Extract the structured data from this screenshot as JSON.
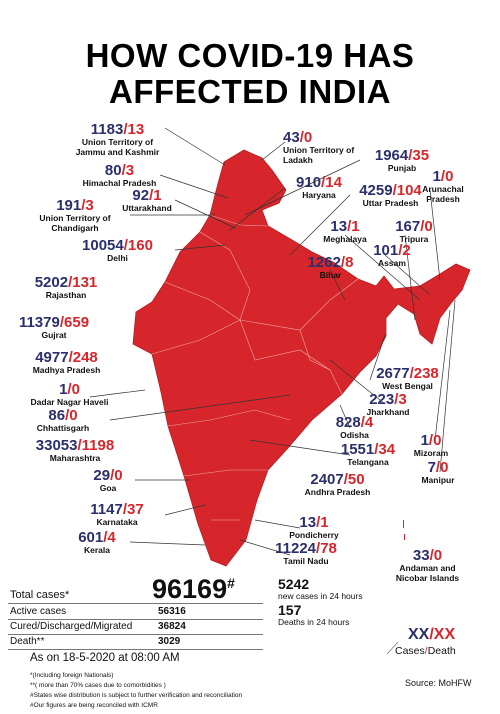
{
  "title": "HOW COVID-19 HAS\nAFFECTED INDIA",
  "separator": "/",
  "regions": [
    {
      "name": "Union Territory of\nJammu and Kashmir",
      "cases": 1183,
      "deaths": 13
    },
    {
      "name": "Union Territory of\nLadakh",
      "cases": 43,
      "deaths": 0
    },
    {
      "name": "Himachal Pradesh",
      "cases": 80,
      "deaths": 3
    },
    {
      "name": "Punjab",
      "cases": 1964,
      "deaths": 35
    },
    {
      "name": "Arunachal\nPradesh",
      "cases": 1,
      "deaths": 0
    },
    {
      "name": "Uttarakhand",
      "cases": 92,
      "deaths": 1
    },
    {
      "name": "Haryana",
      "cases": 910,
      "deaths": 14
    },
    {
      "name": "Uttar Pradesh",
      "cases": 4259,
      "deaths": 104
    },
    {
      "name": "Union Territory of\nChandigarh",
      "cases": 191,
      "deaths": 3
    },
    {
      "name": "Delhi",
      "cases": 10054,
      "deaths": 160
    },
    {
      "name": "Meghalaya",
      "cases": 13,
      "deaths": 1
    },
    {
      "name": "Tripura",
      "cases": 167,
      "deaths": 0
    },
    {
      "name": "Assam",
      "cases": 101,
      "deaths": 2
    },
    {
      "name": "Bihar",
      "cases": 1262,
      "deaths": 8
    },
    {
      "name": "Rajasthan",
      "cases": 5202,
      "deaths": 131
    },
    {
      "name": "Gujrat",
      "cases": 11379,
      "deaths": 659
    },
    {
      "name": "Madhya Pradesh",
      "cases": 4977,
      "deaths": 248
    },
    {
      "name": "West Bengal",
      "cases": 2677,
      "deaths": 238
    },
    {
      "name": "Dadar Nagar Haveli",
      "cases": 1,
      "deaths": 0
    },
    {
      "name": "Jharkhand",
      "cases": 223,
      "deaths": 3
    },
    {
      "name": "Chhattisgarh",
      "cases": 86,
      "deaths": 0
    },
    {
      "name": "Odisha",
      "cases": 828,
      "deaths": 4
    },
    {
      "name": "Maharashtra",
      "cases": 33053,
      "deaths": 1198
    },
    {
      "name": "Telangana",
      "cases": 1551,
      "deaths": 34
    },
    {
      "name": "Mizoram",
      "cases": 1,
      "deaths": 0
    },
    {
      "name": "Goa",
      "cases": 29,
      "deaths": 0
    },
    {
      "name": "Manipur",
      "cases": 7,
      "deaths": 0
    },
    {
      "name": "Andhra Pradesh",
      "cases": 2407,
      "deaths": 50
    },
    {
      "name": "Karnataka",
      "cases": 1147,
      "deaths": 37
    },
    {
      "name": "Pondicherry",
      "cases": 13,
      "deaths": 1
    },
    {
      "name": "Kerala",
      "cases": 601,
      "deaths": 4
    },
    {
      "name": "Tamil Nadu",
      "cases": 11224,
      "deaths": 78
    },
    {
      "name": "Andaman and\nNicobar Islands",
      "cases": 33,
      "deaths": 0
    }
  ],
  "summary": {
    "total_label": "Total cases*",
    "total": 96169,
    "total_mark": "#",
    "new_cases": 5242,
    "new_cases_label": "new cases in 24 hours",
    "new_deaths": 157,
    "new_deaths_label": "Deaths in 24 hours",
    "rows": [
      {
        "label": "Active cases",
        "value": 56316
      },
      {
        "label": "Cured/Discharged/Migrated",
        "value": 36824
      },
      {
        "label": "Death**",
        "value": 3029
      }
    ],
    "as_on": "As on 18-5-2020 at 08:00 AM"
  },
  "footnotes": [
    "*(Including foreign Nationals)",
    "**( more than 70% cases due to comorbidities )",
    "#States wise distribution is subject to further verification and reconciliation",
    "#Our figures are being reconciled with ICMR"
  ],
  "legend": {
    "cases_placeholder": "XX",
    "deaths_placeholder": "XX",
    "cases_label": "Cases",
    "deaths_label": "Death"
  },
  "source": "Source: MoHFW"
}
